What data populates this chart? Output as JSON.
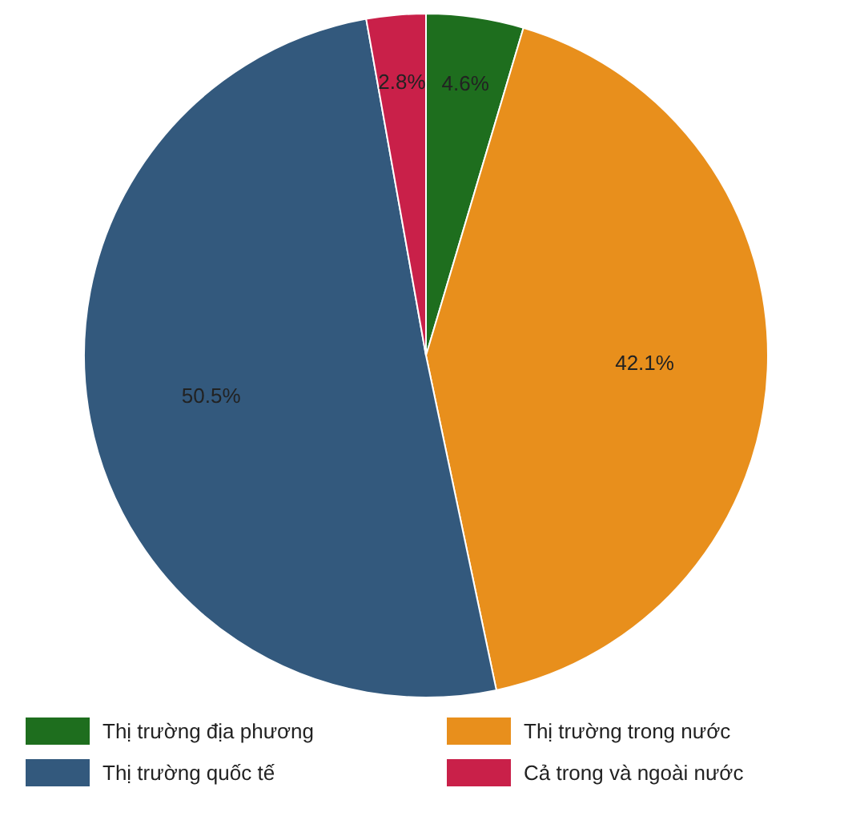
{
  "chart_data": {
    "type": "pie",
    "categories": [
      "Thị trường địa phương",
      "Thị trường trong nước",
      "Thị trường quốc tế",
      "Cả trong và ngoài nước"
    ],
    "values": [
      4.6,
      42.1,
      50.5,
      2.8
    ],
    "colors": [
      "#1e6e1e",
      "#e88f1c",
      "#33597d",
      "#c92049"
    ],
    "value_labels": [
      "4.6%",
      "42.1%",
      "50.5%",
      "2.8%"
    ],
    "legend": "bottom"
  }
}
